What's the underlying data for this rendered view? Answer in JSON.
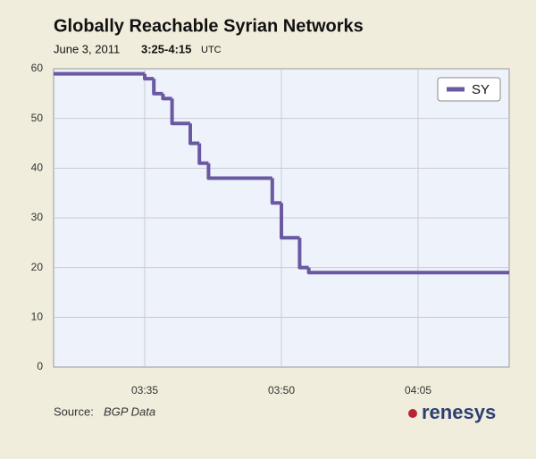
{
  "chart_data": {
    "type": "line",
    "step": "after",
    "title": "Globally Reachable Syrian Networks",
    "subtitle_date": "June 3, 2011",
    "subtitle_time": "3:25-4:15",
    "subtitle_zone": "UTC",
    "source_label": "Source:",
    "source": "BGP Data",
    "logo": "renesys",
    "x": [
      "03:25",
      "03:35",
      "03:36",
      "03:37",
      "03:38",
      "03:40",
      "03:41",
      "03:42",
      "03:49",
      "03:50",
      "03:52",
      "03:53",
      "04:15"
    ],
    "series": [
      {
        "name": "SY",
        "color": "#6b58a3",
        "values": [
          59,
          58,
          55,
          54,
          49,
          45,
          41,
          38,
          33,
          26,
          20,
          19,
          19
        ]
      }
    ],
    "xlim": [
      "03:25",
      "04:15"
    ],
    "xticks": [
      "03:35",
      "03:50",
      "04:05"
    ],
    "ylim": [
      0,
      60
    ],
    "yticks": [
      0,
      10,
      20,
      30,
      40,
      50,
      60
    ],
    "grid": true,
    "legend": "top-right"
  }
}
